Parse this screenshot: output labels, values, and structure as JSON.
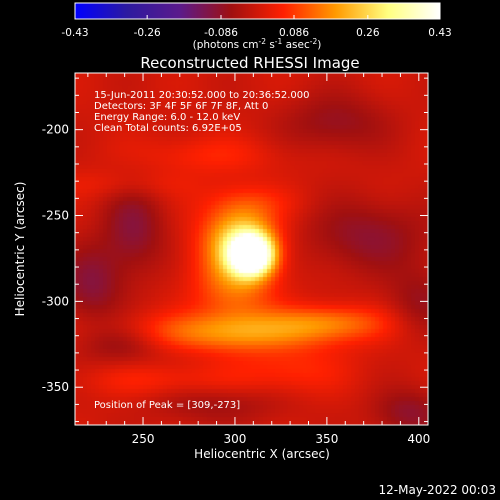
{
  "colorbar": {
    "ticks": [
      -0.43,
      -0.26,
      -0.086,
      0.086,
      0.26,
      0.43
    ],
    "tick_labels": [
      "-0.43",
      "-0.26",
      "-0.086",
      "0.086",
      "0.26",
      "0.43"
    ],
    "range": [
      -0.43,
      0.43
    ],
    "units_prefix": "(photons cm",
    "units_exp1": "-2",
    "units_mid": " s",
    "units_exp2": "-1",
    "units_mid2": " asec",
    "units_exp3": "-2",
    "units_suffix": ")",
    "colors": [
      "#0000ff",
      "#2c1aa0",
      "#5a1a8c",
      "#a01010",
      "#ff2000",
      "#ff9a00",
      "#ffff80",
      "#ffffff"
    ]
  },
  "chart_data": {
    "type": "heatmap",
    "title": "Reconstructed RHESSI Image",
    "xlabel": "Heliocentric X (arcsec)",
    "ylabel": "Heliocentric Y (arcsec)",
    "xlim": [
      213,
      405
    ],
    "ylim": [
      -372,
      -167
    ],
    "xticks": [
      250,
      300,
      350,
      400
    ],
    "xtick_labels": [
      "250",
      "300",
      "350",
      "400"
    ],
    "yticks": [
      -200,
      -250,
      -300,
      -350
    ],
    "ytick_labels": [
      "-200",
      "-250",
      "-300",
      "-350"
    ],
    "annotations": [
      "15-Jun-2011 20:30:52.000 to 20:36:52.000",
      "Detectors: 3F 4F 5F 6F 7F 8F, Att 0",
      "Energy Range: 6.0 - 12.0 keV",
      "Clean     Total counts: 6.92E+05"
    ],
    "peak_label": "Position of Peak = [309,-273]",
    "peak": [
      309,
      -273
    ],
    "peak_value": 0.43,
    "min_value": -0.43,
    "blobs": [
      {
        "x": 309,
        "y": -273,
        "sx": 8,
        "sy": 8,
        "v": 0.55
      },
      {
        "x": 303,
        "y": -262,
        "sx": 14,
        "sy": 14,
        "v": 0.22
      },
      {
        "x": 300,
        "y": -290,
        "sx": 16,
        "sy": 18,
        "v": 0.14
      },
      {
        "x": 300,
        "y": -318,
        "sx": 40,
        "sy": 8,
        "v": 0.16
      },
      {
        "x": 352,
        "y": -312,
        "sx": 22,
        "sy": 7,
        "v": 0.12
      },
      {
        "x": 330,
        "y": -340,
        "sx": 22,
        "sy": 10,
        "v": 0.07
      },
      {
        "x": 260,
        "y": -346,
        "sx": 30,
        "sy": 7,
        "v": 0.06
      },
      {
        "x": 285,
        "y": -215,
        "sx": 28,
        "sy": 8,
        "v": 0.06
      },
      {
        "x": 240,
        "y": -232,
        "sx": 30,
        "sy": 6,
        "v": 0.04
      },
      {
        "x": 310,
        "y": -242,
        "sx": 20,
        "sy": 7,
        "v": 0.04
      },
      {
        "x": 245,
        "y": -258,
        "sx": 12,
        "sy": 18,
        "v": -0.1
      },
      {
        "x": 222,
        "y": -290,
        "sx": 12,
        "sy": 16,
        "v": -0.1
      },
      {
        "x": 238,
        "y": -325,
        "sx": 15,
        "sy": 8,
        "v": -0.08
      },
      {
        "x": 372,
        "y": -262,
        "sx": 24,
        "sy": 15,
        "v": -0.09
      },
      {
        "x": 355,
        "y": -196,
        "sx": 20,
        "sy": 12,
        "v": -0.08
      },
      {
        "x": 395,
        "y": -365,
        "sx": 14,
        "sy": 10,
        "v": -0.09
      },
      {
        "x": 290,
        "y": -360,
        "sx": 25,
        "sy": 8,
        "v": -0.06
      },
      {
        "x": 400,
        "y": -300,
        "sx": 12,
        "sy": 14,
        "v": -0.07
      }
    ]
  },
  "footer": {
    "timestamp": "12-May-2022 00:03"
  }
}
